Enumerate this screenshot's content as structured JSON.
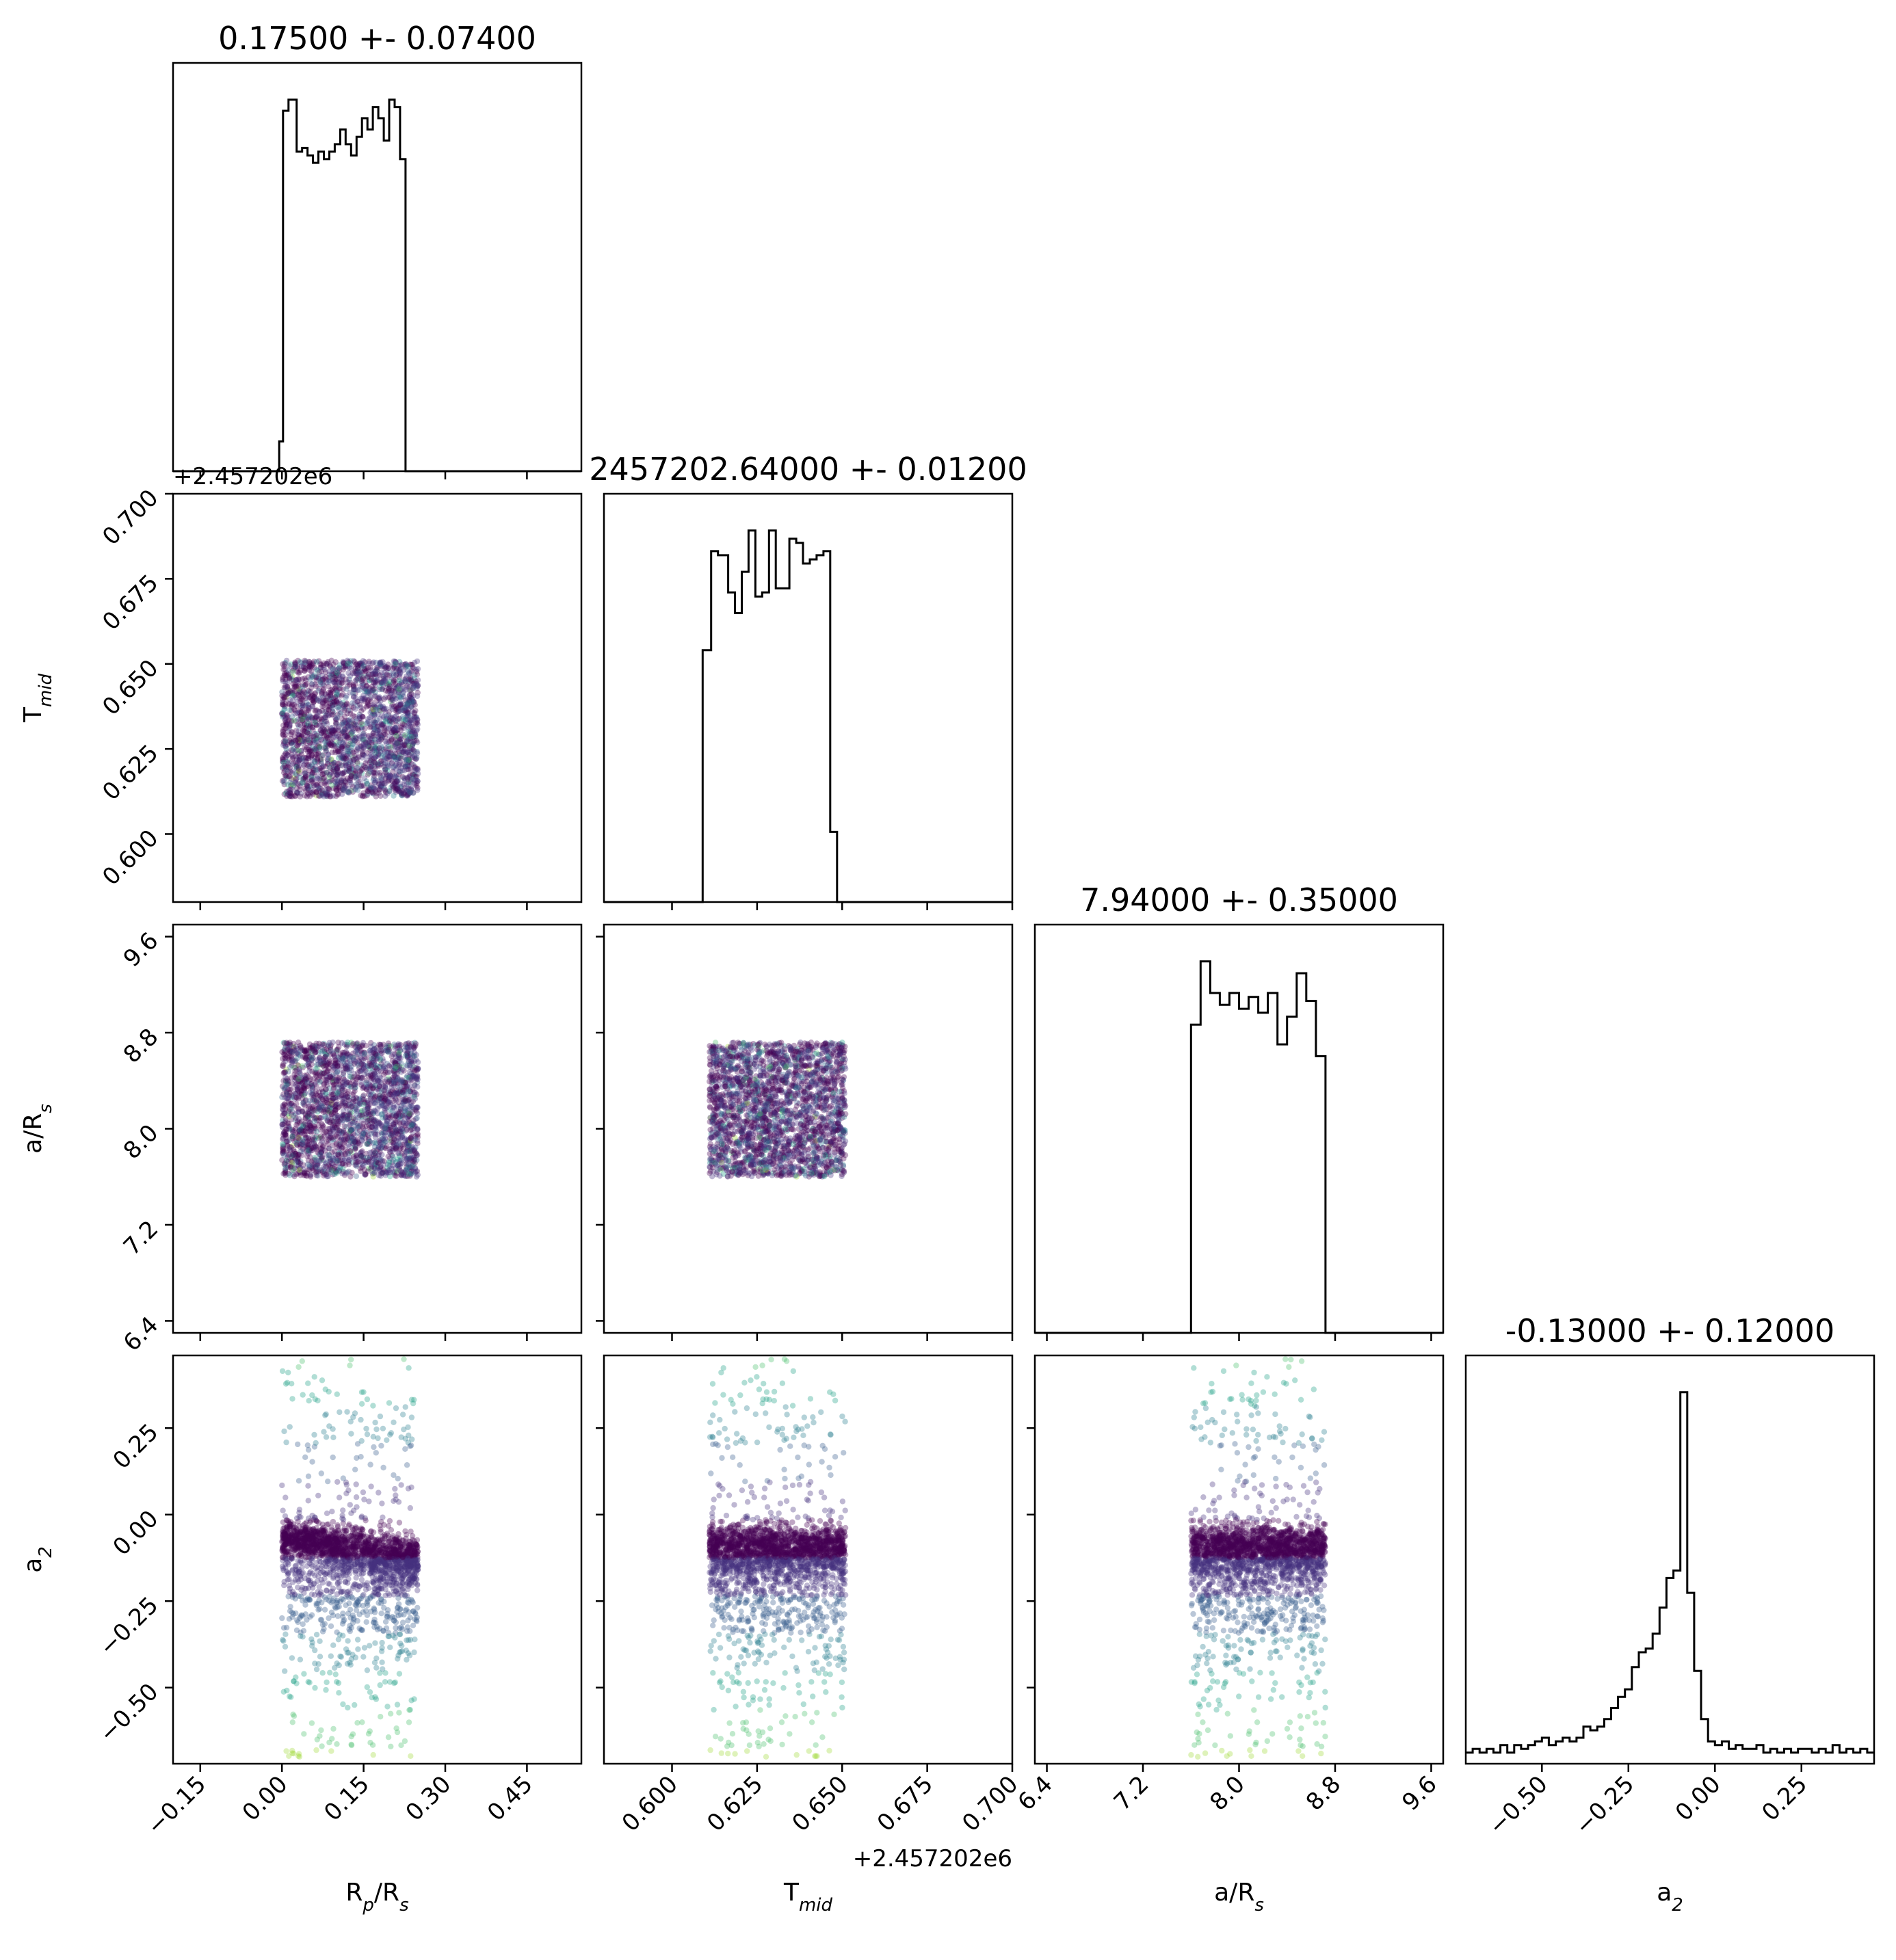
{
  "chart_data": {
    "type": "corner",
    "parameters": [
      {
        "key": "rp",
        "label_main": "R",
        "label_sub": "p",
        "label_tail": "/R",
        "label_sub2": "s",
        "title": "0.17500 +- 0.07400",
        "range": [
          -0.2,
          0.55
        ],
        "ticks": [
          -0.15,
          0.0,
          0.15,
          0.3,
          0.45
        ],
        "tick_labels": [
          "−0.15",
          "0.00",
          "0.15",
          "0.30",
          "0.45"
        ],
        "offset": "",
        "hist": {
          "bin_edges": [
            -0.2,
            -0.005,
            0.002,
            0.012,
            0.027,
            0.037,
            0.047,
            0.057,
            0.067,
            0.077,
            0.087,
            0.097,
            0.107,
            0.117,
            0.127,
            0.137,
            0.147,
            0.157,
            0.167,
            0.177,
            0.187,
            0.197,
            0.207,
            0.217,
            0.227,
            0.237,
            0.247,
            0.55
          ],
          "counts": [
            0,
            8,
            97,
            100,
            86,
            87,
            85,
            83,
            86,
            84,
            86,
            88,
            92,
            88,
            85,
            90,
            95,
            92,
            98,
            95,
            89,
            100,
            98,
            84,
            0,
            0,
            0
          ],
          "max": 100
        }
      },
      {
        "key": "tmid",
        "label_main": "T",
        "label_sub": "mid",
        "label_tail": "",
        "label_sub2": "",
        "title": "2457202.64000 +- 0.01200",
        "range": [
          0.58,
          0.7
        ],
        "ticks": [
          0.6,
          0.625,
          0.65,
          0.675,
          0.7
        ],
        "tick_labels": [
          "0.600",
          "0.625",
          "0.650",
          "0.675",
          "0.700"
        ],
        "offset": "+2.457202e6",
        "hist": {
          "bin_edges": [
            0.58,
            0.609,
            0.6115,
            0.6135,
            0.6165,
            0.6185,
            0.6205,
            0.6225,
            0.6245,
            0.6265,
            0.6285,
            0.6305,
            0.6325,
            0.6345,
            0.6365,
            0.6385,
            0.6405,
            0.6425,
            0.6445,
            0.6465,
            0.6485,
            0.6505,
            0.6525,
            0.7
          ],
          "counts": [
            0,
            61,
            85,
            84,
            75,
            70,
            80,
            90,
            74,
            75,
            90,
            76,
            76,
            88,
            87,
            82,
            83,
            84,
            85,
            17,
            0,
            0,
            0
          ],
          "max": 90
        }
      },
      {
        "key": "ars",
        "label_main": "a/R",
        "label_sub": "s",
        "label_tail": "",
        "label_sub2": "",
        "title": "7.94000 +- 0.35000",
        "range": [
          6.3,
          9.7
        ],
        "ticks": [
          6.4,
          7.2,
          8.0,
          8.8,
          9.6
        ],
        "tick_labels": [
          "6.4",
          "7.2",
          "8.0",
          "8.8",
          "9.6"
        ],
        "offset": "",
        "hist": {
          "bin_edges": [
            6.3,
            7.6,
            7.68,
            7.76,
            7.84,
            7.92,
            8.0,
            8.08,
            8.16,
            8.24,
            8.32,
            8.4,
            8.48,
            8.56,
            8.64,
            8.72,
            8.8,
            9.7
          ],
          "counts": [
            0,
            78,
            94,
            86,
            83,
            86,
            82,
            85,
            81,
            86,
            73,
            80,
            91,
            84,
            70,
            0,
            0
          ],
          "max": 94
        }
      },
      {
        "key": "a2",
        "label_main": "a",
        "label_sub": "2",
        "label_tail": "",
        "label_sub2": "",
        "title": "-0.13000 +- 0.12000",
        "range": [
          -0.72,
          0.46
        ],
        "ticks": [
          -0.5,
          -0.25,
          0.0,
          0.25
        ],
        "tick_labels": [
          "−0.50",
          "−0.25",
          "0.00",
          "0.25"
        ],
        "offset": "",
        "hist": {
          "bin_edges": [
            -0.72,
            -0.7,
            -0.68,
            -0.66,
            -0.64,
            -0.62,
            -0.6,
            -0.58,
            -0.56,
            -0.54,
            -0.52,
            -0.5,
            -0.48,
            -0.46,
            -0.44,
            -0.42,
            -0.4,
            -0.38,
            -0.36,
            -0.34,
            -0.32,
            -0.3,
            -0.28,
            -0.26,
            -0.24,
            -0.22,
            -0.2,
            -0.18,
            -0.16,
            -0.14,
            -0.12,
            -0.1,
            -0.08,
            -0.06,
            -0.04,
            -0.02,
            0.0,
            0.02,
            0.04,
            0.06,
            0.08,
            0.1,
            0.12,
            0.14,
            0.16,
            0.18,
            0.2,
            0.22,
            0.24,
            0.26,
            0.28,
            0.3,
            0.32,
            0.34,
            0.36,
            0.38,
            0.4,
            0.42,
            0.44,
            0.46
          ],
          "counts": [
            3,
            4,
            3,
            4,
            3,
            5,
            3,
            5,
            4,
            5,
            6,
            7,
            5,
            6,
            7,
            6,
            7,
            10,
            9,
            10,
            12,
            15,
            18,
            20,
            26,
            30,
            31,
            35,
            42,
            50,
            52,
            100,
            46,
            25,
            12,
            6,
            5,
            6,
            4,
            5,
            4,
            4,
            5,
            3,
            4,
            3,
            4,
            3,
            4,
            4,
            3,
            4,
            3,
            5,
            3,
            4,
            3,
            4,
            3
          ],
          "max": 100
        }
      }
    ],
    "scatter_density": {
      "rp": {
        "lo": 0.0,
        "hi": 0.25
      },
      "tmid": {
        "lo": 0.611,
        "hi": 0.651
      },
      "ars": {
        "lo": 7.6,
        "hi": 8.72
      },
      "a2_center": -0.07,
      "a2_rp_slope": -0.7
    },
    "colormap": "viridis",
    "grid": false,
    "legend": "none"
  }
}
